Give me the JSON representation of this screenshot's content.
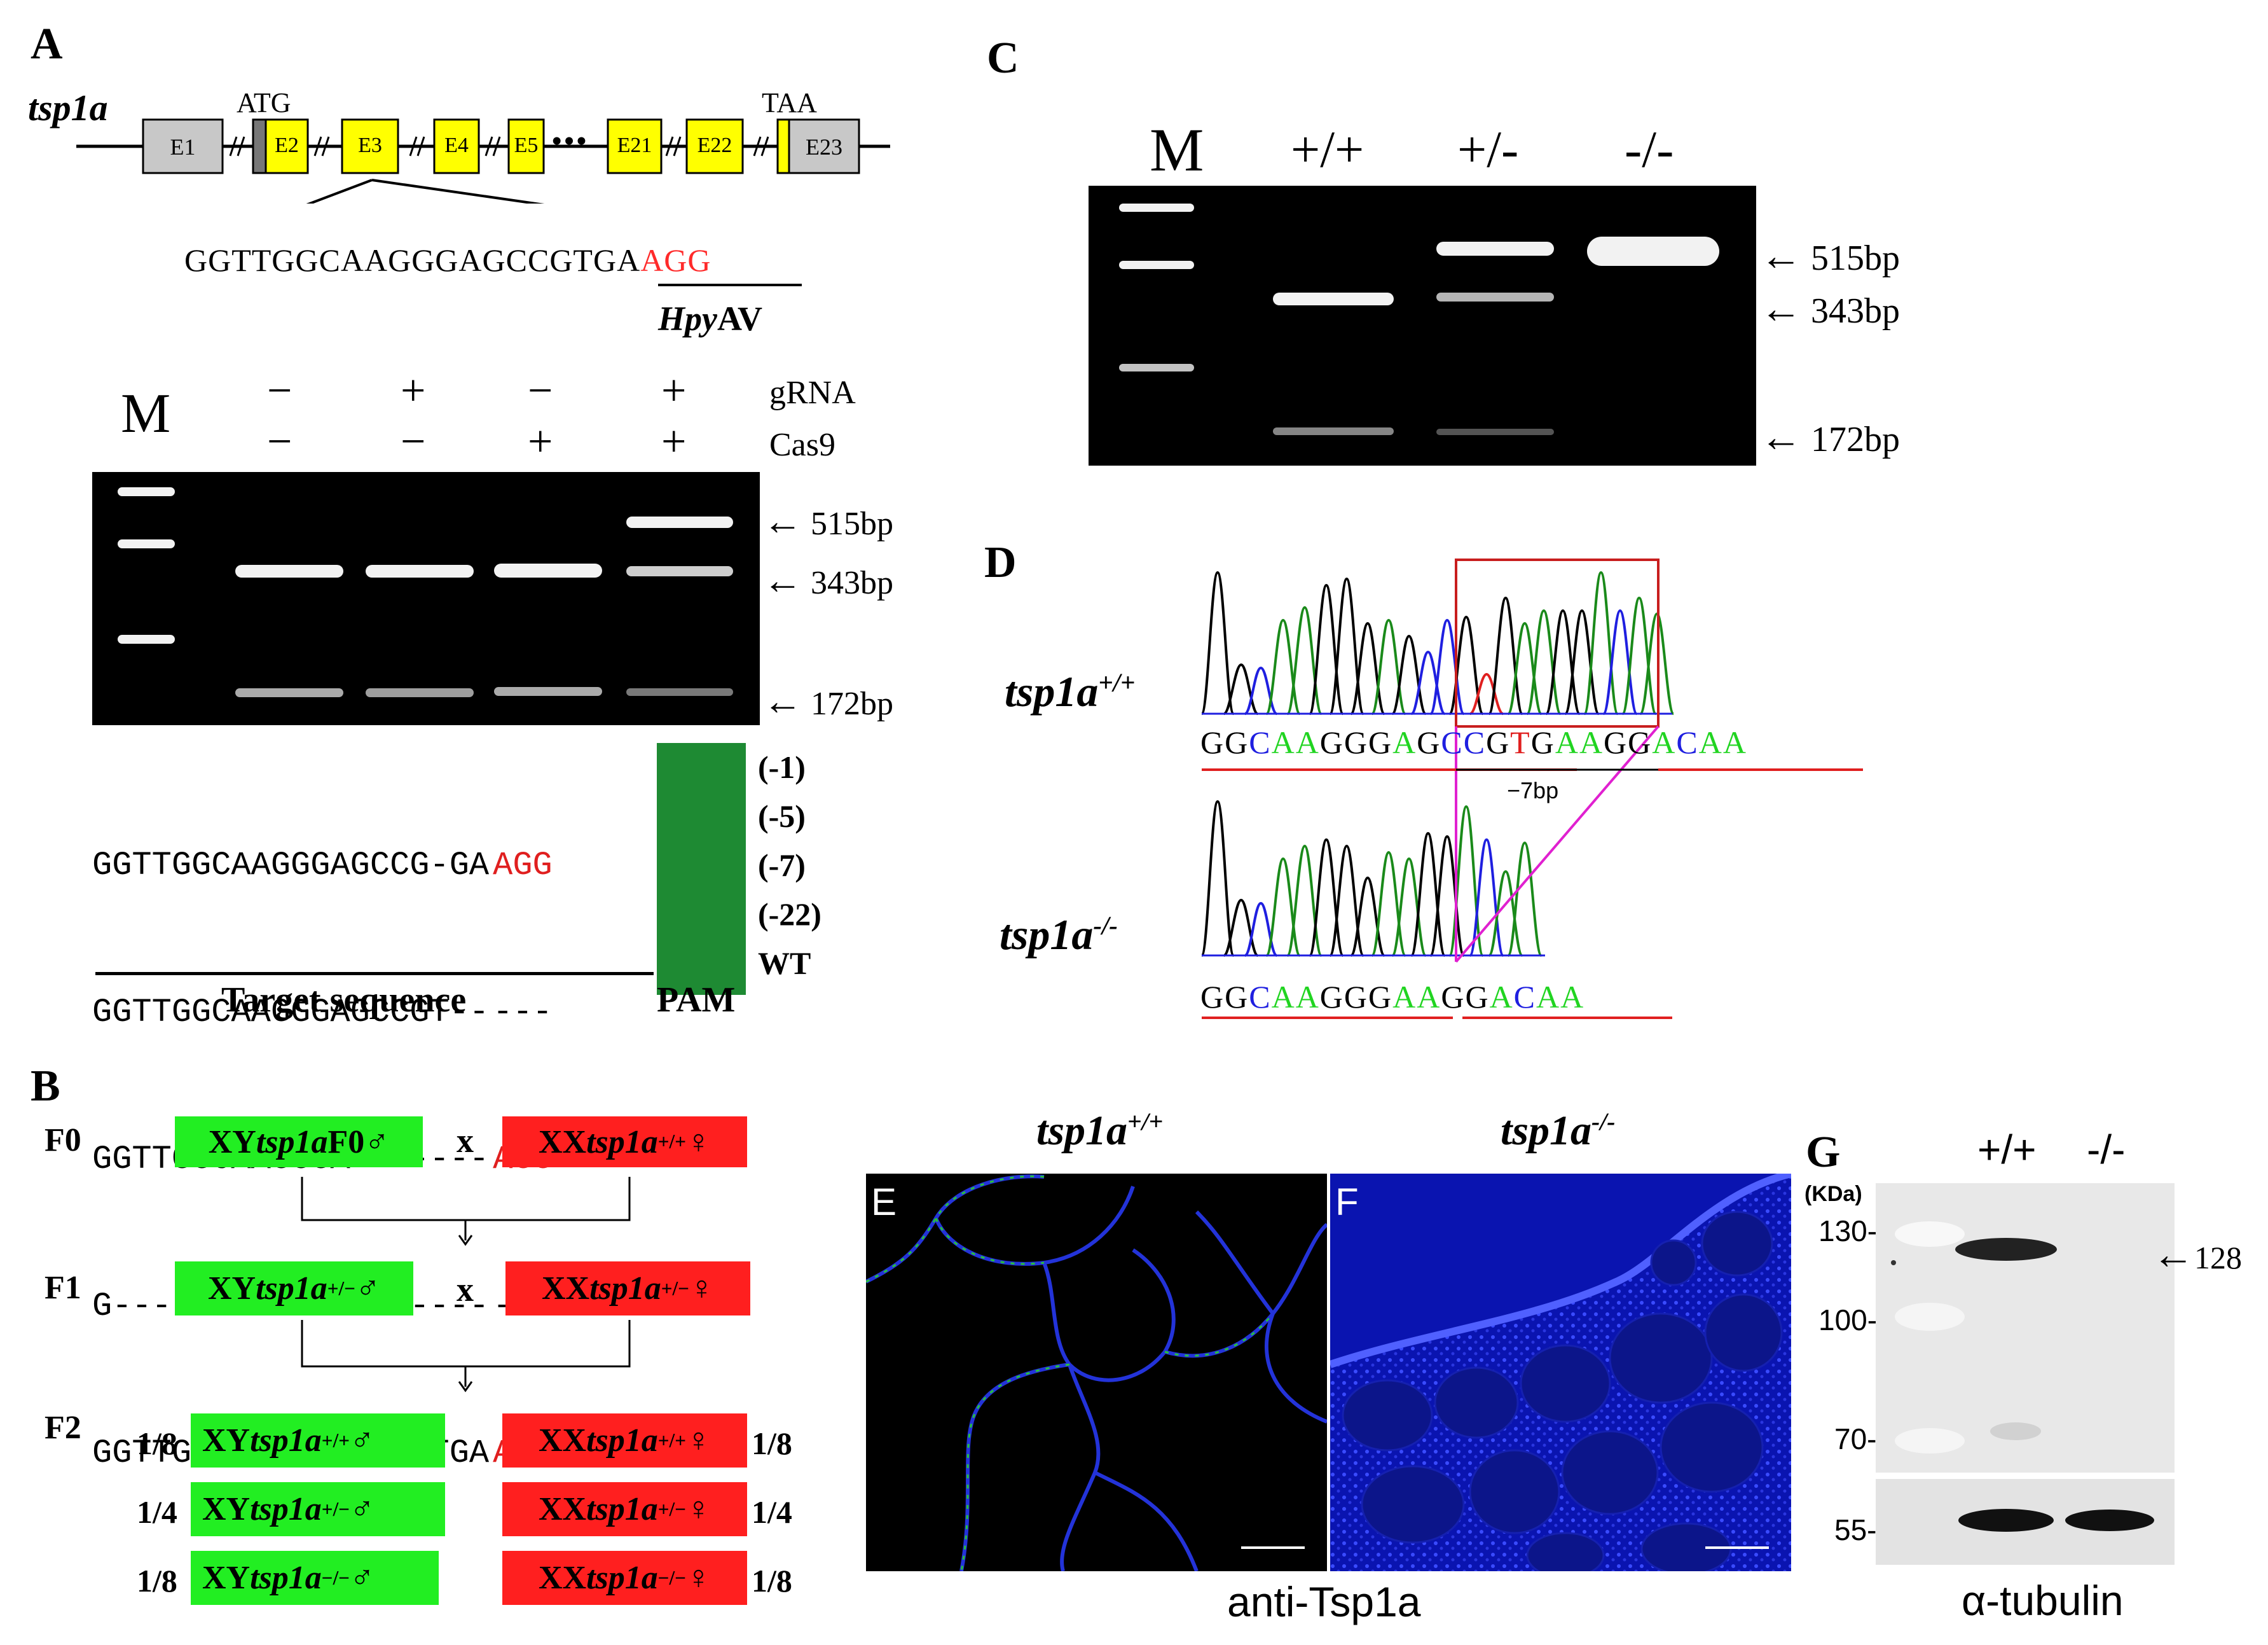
{
  "colors": {
    "exon": "#ffff00",
    "exon_grey": "#c8c8c8",
    "pam": "#1e8a33",
    "pam_text": "#ff2a2a",
    "male": "#22ee22",
    "female": "#ff1f1f",
    "chrom_black": "#000000",
    "chrom_green": "#1a8a1a",
    "chrom_blue": "#1f1fe0",
    "chrom_red": "#e01f1f"
  },
  "panels": {
    "A": "A",
    "B": "B",
    "C": "C",
    "D": "D",
    "E": "E",
    "F": "F",
    "G": "G"
  },
  "A": {
    "gene": "tsp1a",
    "atg": "ATG",
    "taa": "TAA",
    "exons": [
      "E1",
      "E2",
      "E3",
      "E4",
      "E5",
      "E21",
      "E22",
      "E23"
    ],
    "dots": "•••",
    "target_black": "GGTTGGCAAGGGAGCCGTGA",
    "target_red": "AGG",
    "enzyme_italic": "Hpy",
    "enzyme_rest": "AV",
    "gel_M": "M",
    "gRNA_signs": [
      "−",
      "+",
      "−",
      "+"
    ],
    "cas9_signs": [
      "−",
      "−",
      "+",
      "+"
    ],
    "gRNA_label": "gRNA",
    "cas9_label": "Cas9",
    "markers": [
      "515bp",
      "343bp",
      "172bp"
    ],
    "alleles": [
      {
        "seq": "GGTTGGCAAGGGAGCCG-GA",
        "pam": "AGG",
        "tag": "(-1)"
      },
      {
        "seq": "GGTTGGCAAGGGAGCCGT--",
        "pam": "---",
        "tag": "(-5)"
      },
      {
        "seq": "GGTTGGCAAGGGA-------",
        "pam": "AGG",
        "tag": "(-7)"
      },
      {
        "seq": "G-------------------",
        "pam": "---",
        "tag": "(-22)"
      },
      {
        "seq": "GGTTGGCAAGGGAGCCGTGA",
        "pam": "AGG",
        "tag": "WT"
      }
    ],
    "target_label": "Target sequence",
    "pam_label": "PAM"
  },
  "B": {
    "gen": [
      "F0",
      "F1",
      "F2"
    ],
    "cross": "x",
    "f0_male": {
      "a": "XY ",
      "g": "tsp1a",
      "b": " F0♂"
    },
    "f0_female": {
      "a": "XX ",
      "g": "tsp1a",
      "sup": "+/+",
      "b": "♀"
    },
    "f1_male": {
      "a": "XY ",
      "g": "tsp1a",
      "sup": "+/−",
      "b": "♂"
    },
    "f1_female": {
      "a": "XX ",
      "g": "tsp1a",
      "sup": "+/−",
      "b": " ♀"
    },
    "f2": [
      {
        "frac": "1/8",
        "a": "XY ",
        "g": "tsp1a",
        "sup": " +/+",
        "b": " ♂",
        "fa": "XX  ",
        "fsup": "+/+",
        "fb": "♀",
        "ffrac": "1/8"
      },
      {
        "frac": "1/4",
        "a": "XY ",
        "g": "tsp1a",
        "sup": " +/−",
        "b": " ♂",
        "fa": "XX  ",
        "fsup": "+/−",
        "fb": " ♀",
        "ffrac": "1/4"
      },
      {
        "frac": "1/8",
        "a": "XY ",
        "g": "tsp1a",
        "sup": " −/−",
        "b": "♂",
        "fa": "XX  ",
        "fsup": "−/−",
        "fb": " ♀",
        "ffrac": "1/8"
      }
    ]
  },
  "C": {
    "lanes": [
      "M",
      "+/+",
      "+/-",
      "-/-"
    ],
    "markers": [
      "515bp",
      "343bp",
      "172bp"
    ]
  },
  "D": {
    "wt_label": "tsp1a",
    "wt_sup": "+/+",
    "ko_label": "tsp1a",
    "ko_sup": "-/-",
    "wt_seq": [
      [
        "G",
        "k"
      ],
      [
        "G",
        "k"
      ],
      [
        "C",
        "b"
      ],
      [
        "A",
        "g"
      ],
      [
        "A",
        "g"
      ],
      [
        "G",
        "k"
      ],
      [
        "G",
        "k"
      ],
      [
        "G",
        "k"
      ],
      [
        "A",
        "g"
      ],
      [
        "G",
        "k"
      ],
      [
        "C",
        "b"
      ],
      [
        "C",
        "b"
      ],
      [
        "G",
        "k"
      ],
      [
        "T",
        "r"
      ],
      [
        "G",
        "k"
      ],
      [
        "A",
        "g"
      ],
      [
        "A",
        "g"
      ],
      [
        "G",
        "k"
      ],
      [
        "G",
        "k"
      ],
      [
        "A",
        "g"
      ],
      [
        "C",
        "b"
      ],
      [
        "A",
        "g"
      ],
      [
        "A",
        "g"
      ]
    ],
    "ko_seq": [
      [
        "G",
        "k"
      ],
      [
        "G",
        "k"
      ],
      [
        "C",
        "b"
      ],
      [
        "A",
        "g"
      ],
      [
        "A",
        "g"
      ],
      [
        "G",
        "k"
      ],
      [
        "G",
        "k"
      ],
      [
        "G",
        "k"
      ],
      [
        "A",
        "g"
      ],
      [
        "A",
        "g"
      ],
      [
        "G",
        "k"
      ],
      [
        "G",
        "k"
      ],
      [
        "A",
        "g"
      ],
      [
        "C",
        "b"
      ],
      [
        "A",
        "g"
      ],
      [
        "A",
        "g"
      ]
    ],
    "deletion": "−7bp"
  },
  "E": {
    "title": "tsp1a",
    "sup": "+/+",
    "caption": "anti-Tsp1a"
  },
  "F": {
    "title": "tsp1a",
    "sup": "-/-"
  },
  "G": {
    "lanes": [
      "+/+",
      "-/-"
    ],
    "unit": "(KDa)",
    "ladder": [
      "130",
      "100",
      "70",
      "55"
    ],
    "band": "128",
    "caption": "α-tubulin"
  }
}
